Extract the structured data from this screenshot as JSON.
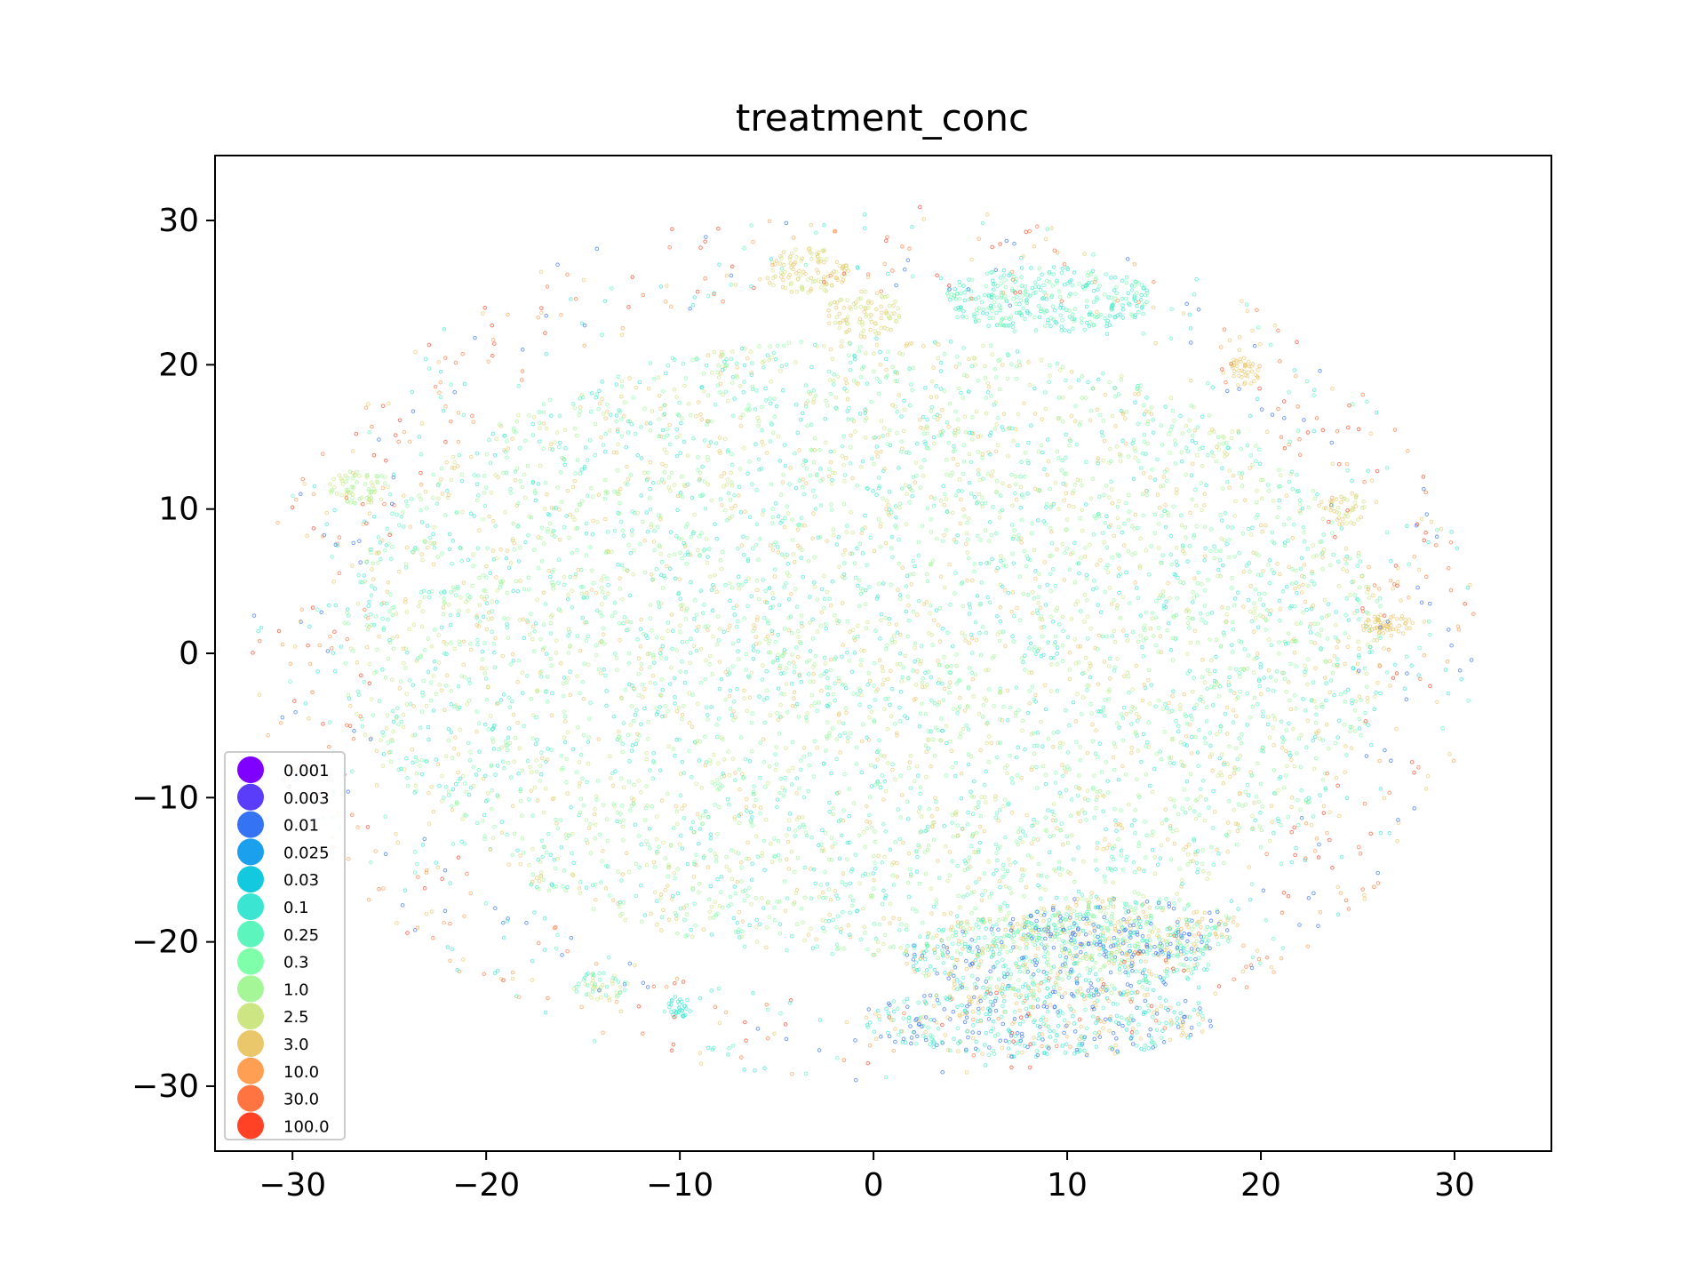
{
  "chart_data": {
    "type": "scatter",
    "title": "treatment_conc",
    "xlabel": "",
    "ylabel": "",
    "xlim": [
      -34,
      35
    ],
    "ylim": [
      -34.5,
      34.5
    ],
    "xticks": [
      -30,
      -20,
      -10,
      0,
      10,
      20,
      30
    ],
    "yticks": [
      -30,
      -20,
      -10,
      0,
      10,
      20,
      30
    ],
    "xtick_labels": [
      "−30",
      "−20",
      "−10",
      "0",
      "10",
      "20",
      "30"
    ],
    "ytick_labels": [
      "−30",
      "−20",
      "−10",
      "0",
      "10",
      "20",
      "30"
    ],
    "grid": false,
    "legend_position": "lower-left",
    "series": [
      {
        "name": "0.001",
        "color": "#8000ff"
      },
      {
        "name": "0.003",
        "color": "#5a3cfb"
      },
      {
        "name": "0.01",
        "color": "#3473f4"
      },
      {
        "name": "0.025",
        "color": "#1aa0ec"
      },
      {
        "name": "0.03",
        "color": "#13c9e0"
      },
      {
        "name": "0.1",
        "color": "#3ae6d2"
      },
      {
        "name": "0.25",
        "color": "#5cf5be"
      },
      {
        "name": "0.3",
        "color": "#80ffaa"
      },
      {
        "name": "1.0",
        "color": "#a4f696"
      },
      {
        "name": "2.5",
        "color": "#cde683"
      },
      {
        "name": "3.0",
        "color": "#eac76b"
      },
      {
        "name": "10.0",
        "color": "#ff9f53"
      },
      {
        "name": "30.0",
        "color": "#ff7440"
      },
      {
        "name": "100.0",
        "color": "#ff4126"
      }
    ],
    "point_clusters": [
      {
        "shape": "ellipse",
        "center": [
          -0.5,
          0.5
        ],
        "radius": [
          27,
          21.5
        ],
        "count": 5200,
        "dominant": [
          "0.25",
          "0.3",
          "1.0",
          "2.5",
          "3.0",
          "0.1"
        ]
      },
      {
        "shape": "ellipse",
        "center": [
          9.5,
          -21
        ],
        "radius": [
          8,
          3
        ],
        "count": 650,
        "dominant": [
          "0.25",
          "0.1",
          "0.01",
          "3.0",
          "1.0"
        ]
      },
      {
        "shape": "ellipse",
        "center": [
          13,
          -19
        ],
        "radius": [
          6,
          2.2
        ],
        "count": 300,
        "dominant": [
          "0.25",
          "0.01",
          "3.0",
          "1.0"
        ]
      },
      {
        "shape": "ellipse",
        "center": [
          8.5,
          -25.5
        ],
        "radius": [
          9,
          2.5
        ],
        "count": 450,
        "dominant": [
          "0.1",
          "0.01",
          "0.25",
          "3.0"
        ]
      },
      {
        "shape": "ellipse",
        "center": [
          9,
          24.5
        ],
        "radius": [
          5.5,
          2.3
        ],
        "count": 320,
        "dominant": [
          "0.25",
          "0.1",
          "0.3"
        ]
      },
      {
        "shape": "ellipse",
        "center": [
          -3.5,
          26.5
        ],
        "radius": [
          2.2,
          1.6
        ],
        "count": 110,
        "dominant": [
          "3.0",
          "2.5"
        ]
      },
      {
        "shape": "ellipse",
        "center": [
          -0.5,
          23.5
        ],
        "radius": [
          2,
          1.6
        ],
        "count": 90,
        "dominant": [
          "2.5",
          "3.0"
        ]
      },
      {
        "shape": "ellipse",
        "center": [
          -26.5,
          11.5
        ],
        "radius": [
          1.6,
          1.2
        ],
        "count": 70,
        "dominant": [
          "2.5",
          "1.0"
        ]
      },
      {
        "shape": "ellipse",
        "center": [
          26.5,
          2
        ],
        "radius": [
          1.5,
          0.8
        ],
        "count": 60,
        "dominant": [
          "3.0"
        ]
      },
      {
        "shape": "ellipse",
        "center": [
          19,
          19.5
        ],
        "radius": [
          1,
          1
        ],
        "count": 40,
        "dominant": [
          "3.0"
        ]
      },
      {
        "shape": "ellipse",
        "center": [
          24.5,
          10
        ],
        "radius": [
          1,
          1.2
        ],
        "count": 40,
        "dominant": [
          "3.0",
          "2.5"
        ]
      },
      {
        "shape": "ellipse",
        "center": [
          -14,
          -23
        ],
        "radius": [
          1.5,
          1
        ],
        "count": 50,
        "dominant": [
          "0.25",
          "2.5"
        ]
      },
      {
        "shape": "ellipse",
        "center": [
          -10,
          -24.5
        ],
        "radius": [
          0.6,
          0.8
        ],
        "count": 30,
        "dominant": [
          "0.1"
        ]
      },
      {
        "shape": "ring",
        "center": [
          -0.5,
          0.5
        ],
        "radius": [
          31,
          30
        ],
        "count": 900,
        "dominant": [
          "3.0",
          "0.25",
          "10.0",
          "0.1",
          "0.01",
          "30.0",
          "100.0"
        ]
      }
    ]
  }
}
